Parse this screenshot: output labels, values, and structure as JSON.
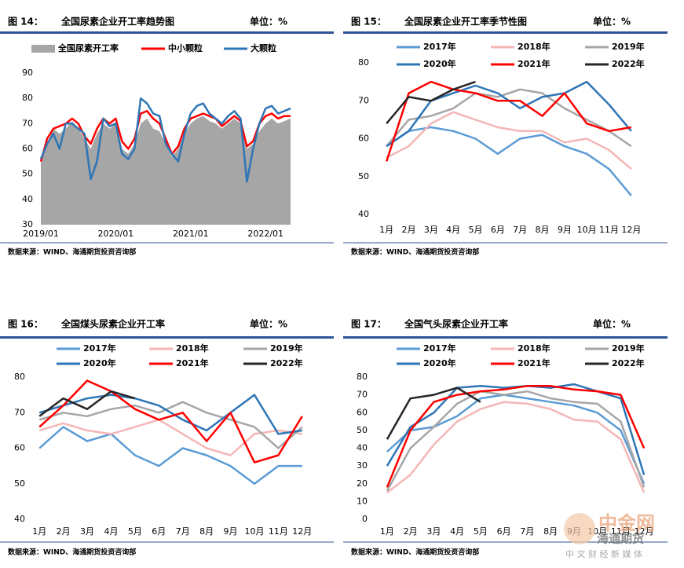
{
  "chart_data": [
    {
      "type": "line",
      "figure_label": "图 14：",
      "title": "全国尿素企业开工率趋势图",
      "unit_label": "单位：%",
      "source": "数据来源：WIND、海通期货投资咨询部",
      "x": [
        "2019/01",
        "2019/02",
        "2019/03",
        "2019/04",
        "2019/05",
        "2019/06",
        "2019/07",
        "2019/08",
        "2019/09",
        "2019/10",
        "2019/11",
        "2019/12",
        "2020/01",
        "2020/02",
        "2020/03",
        "2020/04",
        "2020/05",
        "2020/06",
        "2020/07",
        "2020/08",
        "2020/09",
        "2020/10",
        "2020/11",
        "2020/12",
        "2021/01",
        "2021/02",
        "2021/03",
        "2021/04",
        "2021/05",
        "2021/06",
        "2021/07",
        "2021/08",
        "2021/09",
        "2021/10",
        "2021/11",
        "2021/12",
        "2022/01",
        "2022/02",
        "2022/03",
        "2022/04",
        "2022/05"
      ],
      "xticks": [
        "2019/01",
        "2020/01",
        "2021/01",
        "2022/01"
      ],
      "ylim": [
        30,
        90
      ],
      "yticks": [
        30,
        40,
        50,
        60,
        70,
        80,
        90
      ],
      "series": [
        {
          "name": "全国尿素开工率",
          "color": "#a6a6a6",
          "style": "area",
          "values": [
            55,
            62,
            68,
            66,
            68,
            71,
            68,
            64,
            60,
            66,
            70,
            68,
            70,
            60,
            58,
            62,
            70,
            72,
            68,
            67,
            62,
            57,
            60,
            66,
            70,
            72,
            73,
            71,
            70,
            68,
            70,
            72,
            70,
            60,
            62,
            67,
            70,
            72,
            70,
            71,
            72
          ]
        },
        {
          "name": "中小颗粒",
          "color": "#ff0000",
          "values": [
            55,
            64,
            68,
            69,
            70,
            72,
            70,
            65,
            62,
            68,
            72,
            70,
            72,
            63,
            60,
            64,
            74,
            75,
            72,
            70,
            64,
            58,
            61,
            68,
            72,
            73,
            74,
            73,
            72,
            69,
            71,
            73,
            71,
            61,
            63,
            70,
            73,
            74,
            72,
            73,
            73
          ]
        },
        {
          "name": "大颗粒",
          "color": "#2e75b6",
          "values": [
            56,
            62,
            66,
            60,
            70,
            70,
            68,
            66,
            48,
            55,
            72,
            69,
            70,
            58,
            56,
            60,
            80,
            78,
            74,
            73,
            62,
            58,
            55,
            66,
            74,
            77,
            78,
            74,
            72,
            70,
            73,
            75,
            72,
            47,
            60,
            70,
            76,
            77,
            74,
            75,
            76
          ]
        }
      ]
    },
    {
      "type": "line",
      "figure_label": "图 15：",
      "title": "全国尿素企业开工率季节性图",
      "unit_label": "单位：%",
      "source": "数据来源：WIND、海通期货投资咨询部",
      "categories": [
        "1月",
        "2月",
        "3月",
        "4月",
        "5月",
        "6月",
        "7月",
        "8月",
        "9月",
        "10月",
        "11月",
        "12月"
      ],
      "ylim": [
        40,
        80
      ],
      "yticks": [
        40,
        50,
        60,
        70,
        80
      ],
      "series": [
        {
          "name": "2017年",
          "color": "#5b9bd5",
          "values": [
            58,
            62,
            63,
            62,
            60,
            56,
            60,
            61,
            58,
            56,
            52,
            45
          ]
        },
        {
          "name": "2018年",
          "color": "#f4b6b6",
          "values": [
            55,
            58,
            64,
            67,
            65,
            63,
            62,
            62,
            59,
            60,
            57,
            52
          ]
        },
        {
          "name": "2019年",
          "color": "#a6a6a6",
          "values": [
            58,
            65,
            66,
            68,
            72,
            71,
            73,
            72,
            68,
            65,
            62,
            58
          ]
        },
        {
          "name": "2020年",
          "color": "#2e75b6",
          "values": [
            58,
            62,
            70,
            72,
            74,
            72,
            68,
            71,
            72,
            75,
            69,
            62
          ]
        },
        {
          "name": "2021年",
          "color": "#ff0000",
          "values": [
            54,
            72,
            75,
            73,
            72,
            70,
            70,
            66,
            72,
            64,
            62,
            63
          ]
        },
        {
          "name": "2022年",
          "color": "#262626",
          "values": [
            64,
            71,
            70,
            73,
            75,
            null,
            null,
            null,
            null,
            null,
            null,
            null
          ]
        }
      ]
    },
    {
      "type": "line",
      "figure_label": "图 16：",
      "title": "全国煤头尿素企业开工率",
      "unit_label": "单位：%",
      "source": "数据来源：WIND、海通期货投资咨询部",
      "categories": [
        "1月",
        "2月",
        "3月",
        "4月",
        "5月",
        "6月",
        "7月",
        "8月",
        "9月",
        "10月",
        "11月",
        "12月"
      ],
      "ylim": [
        40,
        80
      ],
      "yticks": [
        40,
        50,
        60,
        70,
        80
      ],
      "series": [
        {
          "name": "2017年",
          "color": "#5b9bd5",
          "values": [
            60,
            66,
            62,
            64,
            58,
            55,
            60,
            58,
            55,
            50,
            55,
            55
          ]
        },
        {
          "name": "2018年",
          "color": "#f4b6b6",
          "values": [
            65,
            67,
            65,
            64,
            66,
            68,
            64,
            60,
            58,
            64,
            65,
            64
          ]
        },
        {
          "name": "2019年",
          "color": "#a6a6a6",
          "values": [
            68,
            70,
            69,
            71,
            72,
            70,
            73,
            70,
            68,
            66,
            60,
            66
          ]
        },
        {
          "name": "2020年",
          "color": "#2e75b6",
          "values": [
            70,
            72,
            74,
            75,
            74,
            72,
            68,
            65,
            70,
            75,
            64,
            65
          ]
        },
        {
          "name": "2021年",
          "color": "#ff0000",
          "values": [
            66,
            72,
            79,
            76,
            71,
            68,
            70,
            62,
            70,
            56,
            58,
            69
          ]
        },
        {
          "name": "2022年",
          "color": "#262626",
          "values": [
            69,
            74,
            71,
            76,
            74,
            null,
            null,
            null,
            null,
            null,
            null,
            null
          ]
        }
      ]
    },
    {
      "type": "line",
      "figure_label": "图 17：",
      "title": "全国气头尿素企业开工率",
      "unit_label": "单位：%",
      "source": "数据来源：WIND、海通期货投资咨询部",
      "categories": [
        "1月",
        "2月",
        "3月",
        "4月",
        "5月",
        "6月",
        "7月",
        "8月",
        "9月",
        "10月",
        "11月",
        "12月"
      ],
      "ylim": [
        0,
        80
      ],
      "yticks": [
        0,
        10,
        20,
        30,
        40,
        50,
        60,
        70,
        80
      ],
      "series": [
        {
          "name": "2017年",
          "color": "#5b9bd5",
          "values": [
            38,
            50,
            52,
            58,
            68,
            70,
            68,
            66,
            64,
            60,
            50,
            20
          ]
        },
        {
          "name": "2018年",
          "color": "#f4b6b6",
          "values": [
            15,
            25,
            42,
            55,
            62,
            66,
            65,
            62,
            56,
            55,
            45,
            15
          ]
        },
        {
          "name": "2019年",
          "color": "#a6a6a6",
          "values": [
            16,
            40,
            52,
            65,
            72,
            70,
            72,
            68,
            66,
            65,
            55,
            18
          ]
        },
        {
          "name": "2020年",
          "color": "#2e75b6",
          "values": [
            30,
            52,
            60,
            74,
            75,
            74,
            75,
            74,
            76,
            72,
            68,
            25
          ]
        },
        {
          "name": "2021年",
          "color": "#ff0000",
          "values": [
            18,
            50,
            66,
            70,
            72,
            73,
            75,
            75,
            73,
            72,
            70,
            40
          ]
        },
        {
          "name": "2022年",
          "color": "#262626",
          "values": [
            45,
            68,
            70,
            74,
            66,
            null,
            null,
            null,
            null,
            null,
            null,
            null
          ]
        }
      ]
    }
  ],
  "watermark": {
    "brand": "中金网",
    "slogan": "中 文 财 经 新 媒 体",
    "overlay": "海通期货"
  }
}
